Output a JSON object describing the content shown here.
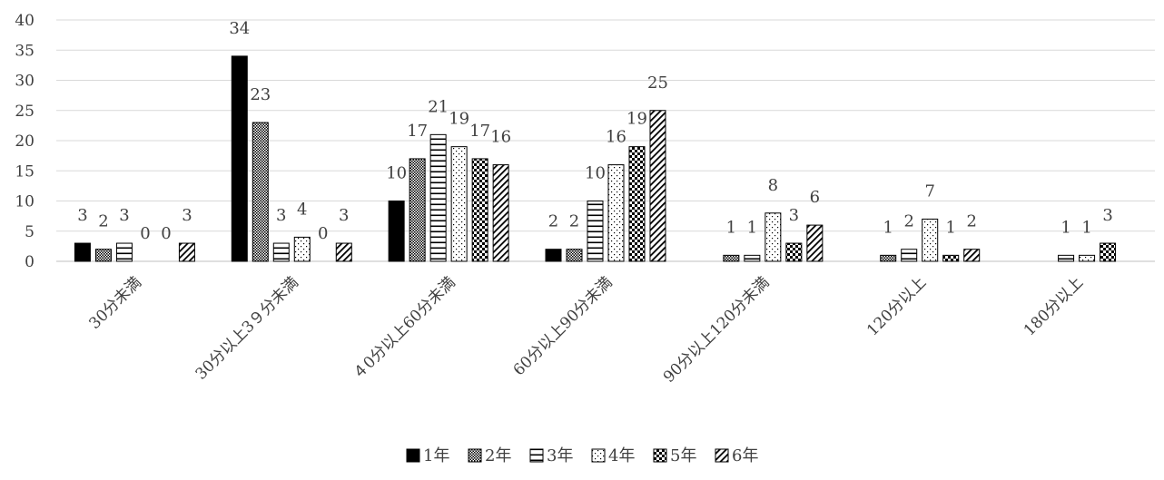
{
  "chart_data": {
    "type": "bar",
    "title": "",
    "xlabel": "",
    "ylabel": "",
    "ylim": [
      0,
      40
    ],
    "yticks": [
      0,
      5,
      10,
      15,
      20,
      25,
      30,
      35,
      40
    ],
    "grid": true,
    "legend_position": "bottom",
    "categories": [
      "30分未満",
      "30分以上3９分未満",
      "４0分以上60分未満",
      "60分以上90分未満",
      "90分以上120分未満",
      "120分以上",
      "180分以上"
    ],
    "series": [
      {
        "name": "1年",
        "pattern": "solid",
        "values": [
          3,
          34,
          10,
          2,
          null,
          null,
          null
        ],
        "labels": [
          "3",
          "34",
          "10",
          "2",
          "",
          "",
          ""
        ]
      },
      {
        "name": "2年",
        "pattern": "dense-check",
        "values": [
          2,
          23,
          17,
          2,
          1,
          1,
          null
        ],
        "labels": [
          "2",
          "23",
          "17",
          "2",
          "1",
          "1",
          ""
        ]
      },
      {
        "name": "3年",
        "pattern": "horizontal-lines",
        "values": [
          3,
          3,
          21,
          10,
          1,
          2,
          1
        ],
        "labels": [
          "3",
          "3",
          "21",
          "10",
          "1",
          "2",
          "1"
        ]
      },
      {
        "name": "4年",
        "pattern": "dots",
        "values": [
          0,
          4,
          19,
          16,
          8,
          7,
          1
        ],
        "labels": [
          "0",
          "4",
          "19",
          "16",
          "8",
          "7",
          "1"
        ]
      },
      {
        "name": "5年",
        "pattern": "checker",
        "values": [
          0,
          0,
          17,
          19,
          3,
          1,
          3
        ],
        "labels": [
          "0",
          "0",
          "17",
          "19",
          "3",
          "1",
          "3"
        ]
      },
      {
        "name": "6年",
        "pattern": "diagonal",
        "values": [
          3,
          3,
          16,
          25,
          6,
          2,
          null
        ],
        "labels": [
          "3",
          "3",
          "16",
          "25",
          "6",
          "2",
          ""
        ]
      }
    ],
    "colors": {
      "bar_fill": "#000000",
      "bar_edge": "#000000",
      "grid": "#d9d9d9",
      "text": "#404040"
    }
  }
}
